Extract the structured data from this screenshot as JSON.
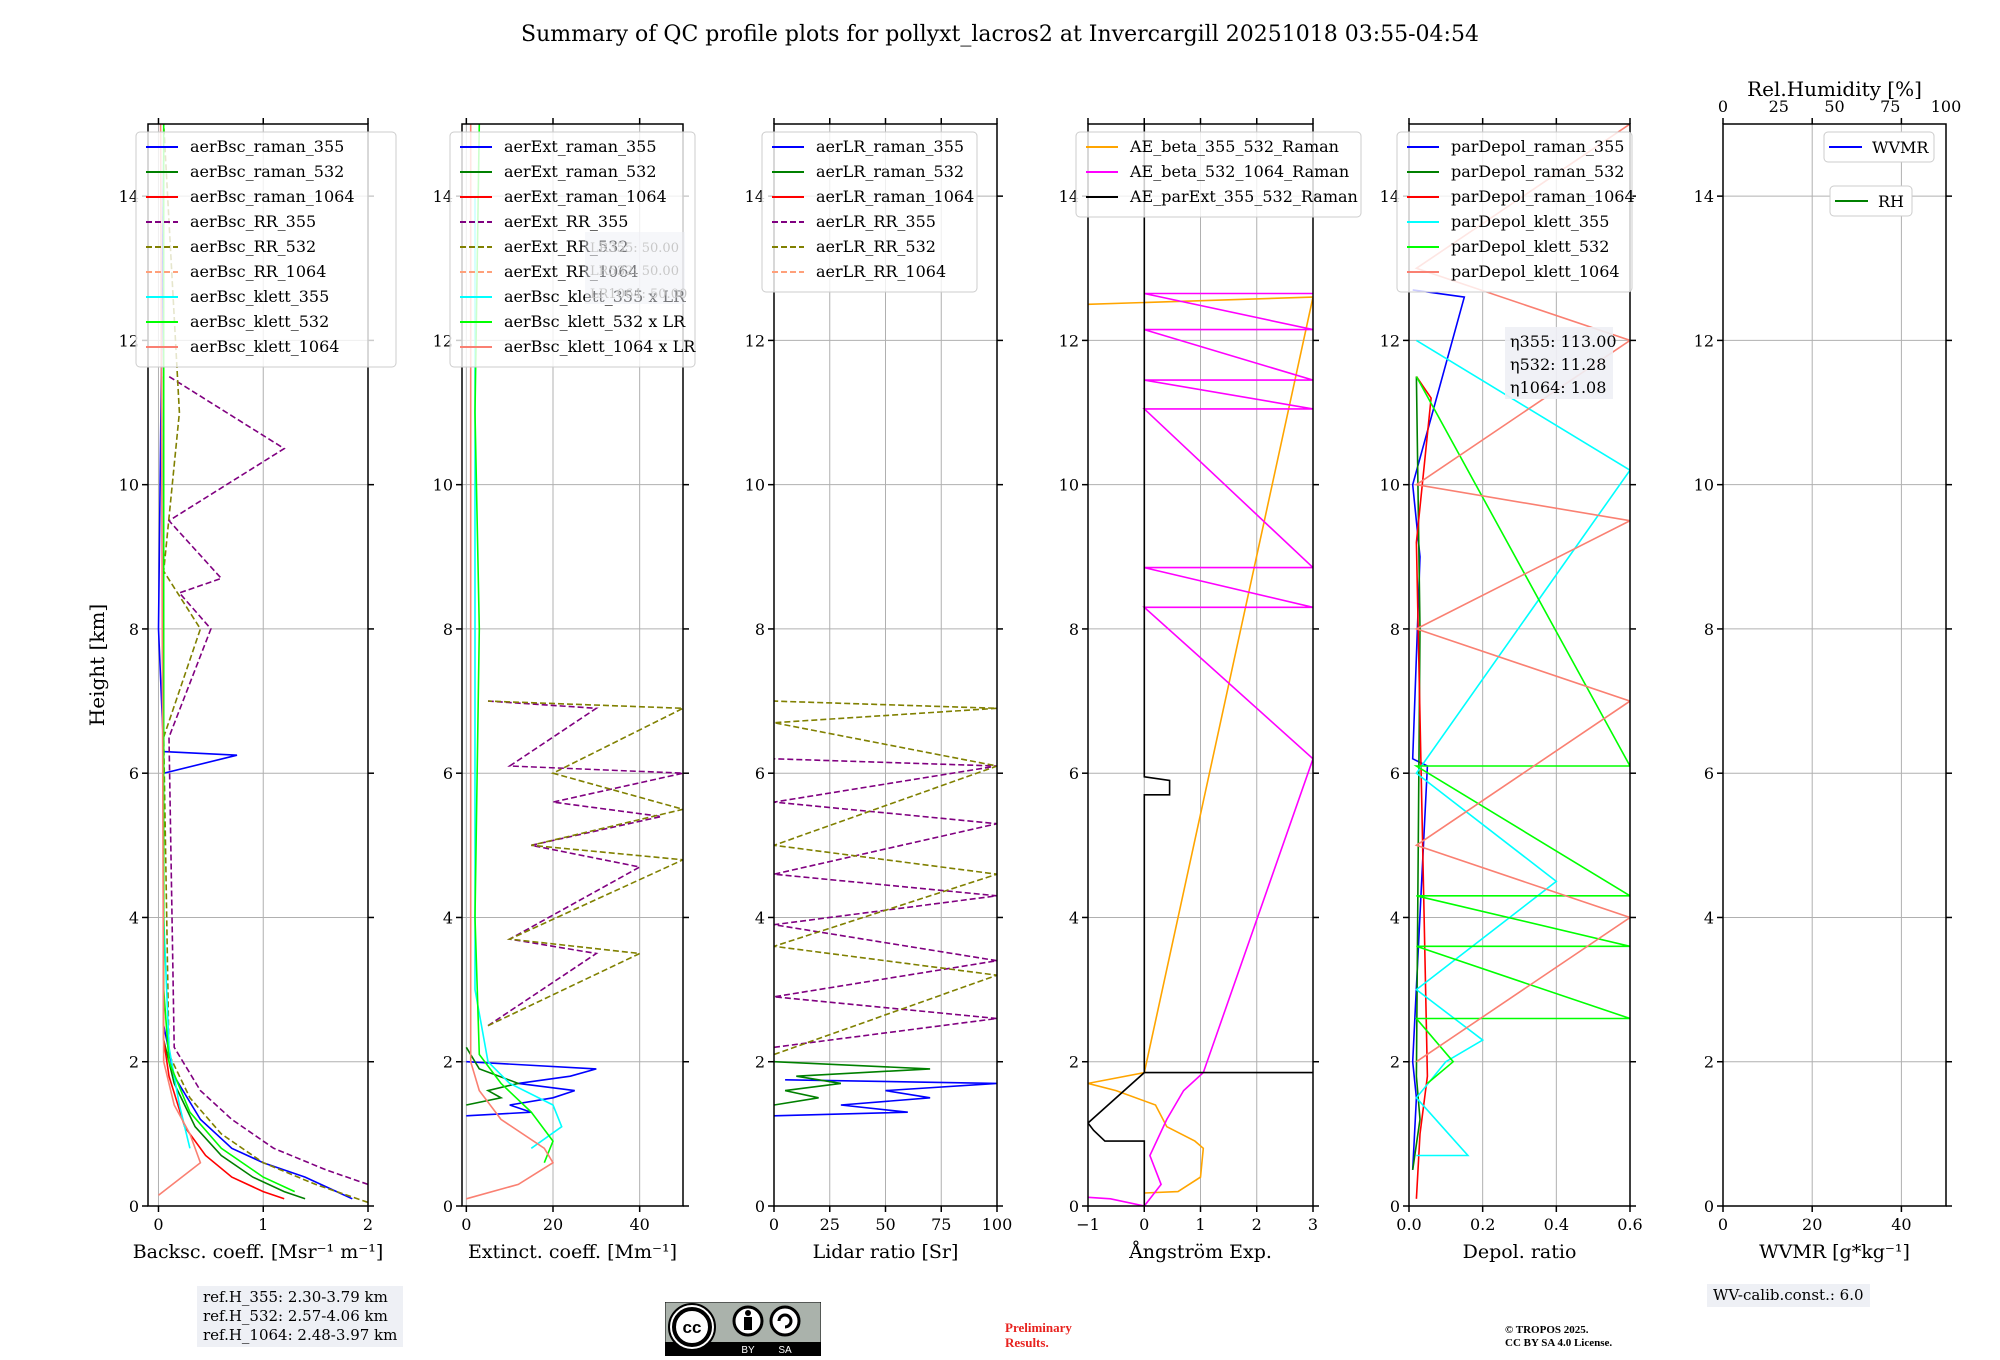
{
  "title": "Summary of QC profile plots for pollyxt_lacros2 at Invercargill 20251018 03:55-04:54",
  "chart_data": [
    {
      "type": "line",
      "id": "backscatter",
      "xlabel": "Backsc. coeff. [Msr⁻¹ m⁻¹]",
      "ylabel": "Height [km]",
      "xlim": [
        -0.1,
        2.0
      ],
      "ylim": [
        0,
        15
      ],
      "xticks": [
        0,
        1,
        2
      ],
      "yticks": [
        0,
        2,
        4,
        6,
        8,
        10,
        12,
        14
      ],
      "grid": true,
      "legend_position": "top-left",
      "series": [
        {
          "name": "aerBsc_raman_355",
          "color": "#0000ff",
          "dash": false,
          "x": [
            1.85,
            1.7,
            1.4,
            1.0,
            0.7,
            0.4,
            0.15,
            0.05,
            0.05,
            0.05,
            0.75,
            0.05,
            0.0,
            0.05
          ],
          "y": [
            0.1,
            0.2,
            0.4,
            0.6,
            0.8,
            1.2,
            1.8,
            2.5,
            4.0,
            6.0,
            6.25,
            6.3,
            8.0,
            14.5
          ]
        },
        {
          "name": "aerBsc_raman_532",
          "color": "#008000",
          "dash": false,
          "x": [
            1.4,
            1.2,
            0.9,
            0.6,
            0.35,
            0.15,
            0.05,
            0.05,
            0.05
          ],
          "y": [
            0.1,
            0.2,
            0.4,
            0.7,
            1.1,
            1.7,
            2.3,
            6.0,
            11.5
          ]
        },
        {
          "name": "aerBsc_raman_1064",
          "color": "#ff0000",
          "dash": false,
          "x": [
            1.2,
            1.0,
            0.7,
            0.45,
            0.25,
            0.1,
            0.05,
            0.05
          ],
          "y": [
            0.1,
            0.2,
            0.4,
            0.7,
            1.1,
            1.8,
            2.3,
            9.0
          ]
        },
        {
          "name": "aerBsc_RR_355",
          "color": "#800080",
          "dash": true,
          "x": [
            2.0,
            1.6,
            1.1,
            0.7,
            0.4,
            0.15,
            0.1,
            0.5,
            0.2,
            0.6,
            0.1,
            1.2,
            0.1
          ],
          "y": [
            0.3,
            0.5,
            0.8,
            1.2,
            1.6,
            2.2,
            6.5,
            8.0,
            8.5,
            8.7,
            9.5,
            10.5,
            11.5
          ]
        },
        {
          "name": "aerBsc_RR_532",
          "color": "#808000",
          "dash": true,
          "x": [
            2.0,
            1.5,
            1.0,
            0.6,
            0.3,
            0.1,
            0.05,
            0.4,
            0.05,
            0.2,
            0.05
          ],
          "y": [
            0.05,
            0.3,
            0.6,
            1.0,
            1.5,
            2.1,
            6.5,
            8.0,
            8.8,
            11.0,
            15.0
          ]
        },
        {
          "name": "aerBsc_RR_1064",
          "color": "#ffa07a",
          "dash": true,
          "x": [
            0.05,
            0.05
          ],
          "y": [
            2.0,
            15.0
          ]
        },
        {
          "name": "aerBsc_klett_355",
          "color": "#00ffff",
          "dash": false,
          "x": [
            0.3,
            0.2,
            0.1,
            0.05,
            0.05
          ],
          "y": [
            0.8,
            1.4,
            2.2,
            4.0,
            11.0
          ]
        },
        {
          "name": "aerBsc_klett_532",
          "color": "#00ff00",
          "dash": false,
          "x": [
            1.3,
            1.0,
            0.6,
            0.3,
            0.1,
            0.05,
            0.05
          ],
          "y": [
            0.2,
            0.4,
            0.8,
            1.3,
            2.0,
            3.0,
            15.0
          ]
        },
        {
          "name": "aerBsc_klett_1064",
          "color": "#fa8072",
          "dash": false,
          "x": [
            0.0,
            0.4,
            0.3,
            0.15,
            0.05,
            0.02
          ],
          "y": [
            0.15,
            0.6,
            1.0,
            1.4,
            2.0,
            15.0
          ]
        }
      ],
      "footnote": [
        "ref.H_355: 2.30-3.79 km",
        "ref.H_532: 2.57-4.06 km",
        "ref.H_1064: 2.48-3.97 km"
      ]
    },
    {
      "type": "line",
      "id": "extinction",
      "xlabel": "Extinct. coeff. [Mm⁻¹]",
      "xlim": [
        -1,
        50
      ],
      "ylim": [
        0,
        15
      ],
      "xticks": [
        0,
        20,
        40
      ],
      "yticks": [
        0,
        2,
        4,
        6,
        8,
        10,
        12,
        14
      ],
      "grid": true,
      "legend_position": "top-left",
      "annotation": [
        "LR355: 50.00",
        "LR532: 50.00",
        "LR1064: 50.00"
      ],
      "series": [
        {
          "name": "aerExt_raman_355",
          "color": "#0000ff",
          "dash": false,
          "x": [
            0,
            15,
            10,
            20,
            25,
            12,
            24,
            30,
            0
          ],
          "y": [
            1.25,
            1.3,
            1.4,
            1.5,
            1.6,
            1.7,
            1.8,
            1.9,
            2.0
          ]
        },
        {
          "name": "aerExt_raman_532",
          "color": "#008000",
          "dash": false,
          "x": [
            0,
            8,
            5,
            12,
            3,
            0
          ],
          "y": [
            1.4,
            1.5,
            1.6,
            1.7,
            1.9,
            2.2
          ]
        },
        {
          "name": "aerExt_raman_1064",
          "color": "#ff0000",
          "dash": false,
          "x": [],
          "y": []
        },
        {
          "name": "aerExt_RR_355",
          "color": "#800080",
          "dash": true,
          "x": [
            5,
            30,
            10,
            40,
            15,
            45,
            20,
            50,
            10,
            30,
            5
          ],
          "y": [
            2.5,
            3.5,
            3.7,
            4.7,
            5.0,
            5.4,
            5.6,
            6.0,
            6.1,
            6.9,
            7.0
          ]
        },
        {
          "name": "aerExt_RR_532",
          "color": "#808000",
          "dash": true,
          "x": [
            5,
            40,
            10,
            50,
            15,
            50,
            20,
            50,
            5
          ],
          "y": [
            2.5,
            3.5,
            3.7,
            4.8,
            5.0,
            5.5,
            6.0,
            6.9,
            7.0
          ]
        },
        {
          "name": "aerExt_RR_1064",
          "color": "#ffa07a",
          "dash": true,
          "x": [],
          "y": []
        },
        {
          "name": "aerBsc_klett_355 x LR",
          "color": "#00ffff",
          "dash": false,
          "x": [
            15,
            22,
            20,
            10,
            5,
            2,
            2
          ],
          "y": [
            0.8,
            1.1,
            1.4,
            1.7,
            2.0,
            3.0,
            14.0
          ]
        },
        {
          "name": "aerBsc_klett_532 x LR",
          "color": "#00ff00",
          "dash": false,
          "x": [
            18,
            20,
            15,
            8,
            3,
            2,
            3,
            2,
            3
          ],
          "y": [
            0.6,
            0.9,
            1.3,
            1.7,
            2.1,
            4.0,
            8.0,
            11.0,
            15.0
          ]
        },
        {
          "name": "aerBsc_klett_1064 x LR",
          "color": "#fa8072",
          "dash": false,
          "x": [
            0,
            12,
            20,
            18,
            8,
            3,
            1,
            1
          ],
          "y": [
            0.1,
            0.3,
            0.6,
            0.8,
            1.2,
            1.6,
            2.0,
            15.0
          ]
        }
      ]
    },
    {
      "type": "line",
      "id": "lidar-ratio",
      "xlabel": "Lidar ratio [Sr]",
      "xlim": [
        0,
        100
      ],
      "ylim": [
        0,
        15
      ],
      "xticks": [
        0,
        25,
        50,
        75,
        100
      ],
      "yticks": [
        0,
        2,
        4,
        6,
        8,
        10,
        12,
        14
      ],
      "grid": true,
      "legend_position": "top-left",
      "series": [
        {
          "name": "aerLR_raman_355",
          "color": "#0000ff",
          "dash": false,
          "x": [
            0,
            60,
            30,
            70,
            50,
            100,
            5
          ],
          "y": [
            1.25,
            1.3,
            1.4,
            1.5,
            1.6,
            1.7,
            1.75
          ]
        },
        {
          "name": "aerLR_raman_532",
          "color": "#008000",
          "dash": false,
          "x": [
            0,
            20,
            5,
            30,
            10,
            70,
            0
          ],
          "y": [
            1.4,
            1.5,
            1.6,
            1.7,
            1.8,
            1.9,
            2.0
          ]
        },
        {
          "name": "aerLR_raman_1064",
          "color": "#ff0000",
          "dash": false,
          "x": [],
          "y": []
        },
        {
          "name": "aerLR_RR_355",
          "color": "#800080",
          "dash": true,
          "x": [
            0,
            100,
            0,
            100,
            0,
            100,
            0,
            100,
            0,
            100,
            0
          ],
          "y": [
            2.2,
            2.6,
            2.9,
            3.4,
            3.9,
            4.3,
            4.6,
            5.3,
            5.6,
            6.1,
            6.2
          ]
        },
        {
          "name": "aerLR_RR_532",
          "color": "#808000",
          "dash": true,
          "x": [
            0,
            100,
            0,
            100,
            0,
            100,
            0,
            100,
            0
          ],
          "y": [
            2.1,
            3.2,
            3.6,
            4.6,
            5.0,
            6.1,
            6.7,
            6.9,
            7.0
          ]
        },
        {
          "name": "aerLR_RR_1064",
          "color": "#ffa07a",
          "dash": true,
          "x": [],
          "y": []
        }
      ]
    },
    {
      "type": "line",
      "id": "angstrom",
      "xlabel": "Ångström Exp.",
      "xlim": [
        -1,
        3
      ],
      "ylim": [
        0,
        15
      ],
      "xticks": [
        -1,
        0,
        1,
        2,
        3
      ],
      "yticks": [
        0,
        2,
        4,
        6,
        8,
        10,
        12,
        14
      ],
      "grid": true,
      "legend_position": "top-left",
      "series": [
        {
          "name": "AE_beta_355_532_Raman",
          "color": "#ffa500",
          "dash": false,
          "x": [
            0,
            0.6,
            1.0,
            1.05,
            0.9,
            0.4,
            0.2,
            -0.5,
            -1.0,
            0,
            3,
            -1
          ],
          "y": [
            0.18,
            0.2,
            0.4,
            0.8,
            0.9,
            1.1,
            1.4,
            1.6,
            1.7,
            1.85,
            12.6,
            12.5
          ]
        },
        {
          "name": "AE_beta_532_1064_Raman",
          "color": "#ff00ff",
          "dash": false,
          "x": [
            -1,
            -0.6,
            0,
            0.3,
            0.1,
            0.4,
            0.7,
            1.05,
            3,
            0,
            3,
            0,
            3,
            0,
            3,
            0,
            3,
            0,
            3,
            0,
            3
          ],
          "y": [
            0.12,
            0.1,
            0.0,
            0.3,
            0.7,
            1.2,
            1.6,
            1.85,
            6.2,
            8.3,
            8.3,
            8.85,
            8.85,
            11.05,
            11.05,
            11.45,
            11.45,
            12.15,
            12.15,
            12.65,
            12.65
          ]
        },
        {
          "name": "AE_parExt_355_532_Raman",
          "color": "#000000",
          "dash": false,
          "x": [
            0,
            0,
            -0.7,
            -0.9,
            -1.0,
            0,
            0,
            3,
            0,
            0,
            0.45,
            0.45,
            0,
            0
          ],
          "y": [
            0,
            0.9,
            0.9,
            1.05,
            1.15,
            1.85,
            1.85,
            1.85,
            1.85,
            5.7,
            5.7,
            5.9,
            5.95,
            15
          ]
        }
      ]
    },
    {
      "type": "line",
      "id": "depolarization",
      "xlabel": "Depol. ratio",
      "xlim": [
        0,
        0.6
      ],
      "ylim": [
        0,
        15
      ],
      "xticks": [
        0.0,
        0.2,
        0.4,
        0.6
      ],
      "yticks": [
        0,
        2,
        4,
        6,
        8,
        10,
        12,
        14
      ],
      "grid": true,
      "legend_position": "top-left",
      "annotation": [
        "η355: 113.00",
        "η532: 11.28",
        "η1064: 1.08"
      ],
      "series": [
        {
          "name": "parDepol_raman_355",
          "color": "#0000ff",
          "dash": false,
          "x": [
            0.01,
            0.02,
            0.01,
            0.05,
            0.01,
            0.03,
            0.01,
            0.15,
            0.01
          ],
          "y": [
            0.5,
            1.5,
            2.0,
            6.1,
            6.2,
            9.0,
            10.0,
            12.6,
            12.7
          ]
        },
        {
          "name": "parDepol_raman_532",
          "color": "#008000",
          "dash": false,
          "x": [
            0.01,
            0.03,
            0.02,
            0.03,
            0.02
          ],
          "y": [
            0.5,
            1.2,
            1.8,
            8.0,
            11.5
          ]
        },
        {
          "name": "parDepol_raman_1064",
          "color": "#ff0000",
          "dash": false,
          "x": [
            0.02,
            0.03,
            0.05,
            0.02,
            0.06,
            0.02
          ],
          "y": [
            0.1,
            1.0,
            1.8,
            9.2,
            11.2,
            11.5
          ]
        },
        {
          "name": "parDepol_klett_355",
          "color": "#00ffff",
          "dash": false,
          "x": [
            0.02,
            0.16,
            0.02,
            0.1,
            0.2,
            0.02,
            0.4,
            0.02,
            0.6,
            0.02
          ],
          "y": [
            0.7,
            0.7,
            1.5,
            2.0,
            2.3,
            3.0,
            4.5,
            6.0,
            10.2,
            12.0
          ]
        },
        {
          "name": "parDepol_klett_532",
          "color": "#00ff00",
          "dash": false,
          "x": [
            0.05,
            0.12,
            0.02,
            0.6,
            0.02,
            0.6,
            0.02,
            0.6,
            0.02,
            0.6,
            0.02
          ],
          "y": [
            1.7,
            2.0,
            2.6,
            2.6,
            3.6,
            3.6,
            4.3,
            4.3,
            6.1,
            6.1,
            11.5
          ]
        },
        {
          "name": "parDepol_klett_1064",
          "color": "#fa8072",
          "dash": false,
          "x": [
            0.02,
            0.6,
            0.02,
            0.6,
            0.02,
            0.6,
            0.02,
            0.6,
            0.02,
            0.6
          ],
          "y": [
            2.0,
            4.0,
            5.0,
            7.0,
            8.0,
            9.5,
            10.0,
            12.0,
            13.0,
            15.0
          ]
        }
      ]
    },
    {
      "type": "line",
      "id": "water-vapor",
      "xlabel": "WVMR [g*kg⁻¹]",
      "xlim": [
        0,
        50
      ],
      "ylim": [
        0,
        15
      ],
      "xticks": [
        0,
        20,
        40
      ],
      "yticks": [
        0,
        2,
        4,
        6,
        8,
        10,
        12,
        14
      ],
      "top_xlabel": "Rel.Humidity [%]",
      "top_xlim": [
        0,
        100
      ],
      "top_xticks": [
        0,
        25,
        50,
        75,
        100
      ],
      "grid": true,
      "legend_position": "top-right",
      "series": [
        {
          "name": "WVMR",
          "color": "#0000ff",
          "dash": false,
          "x": [],
          "y": []
        },
        {
          "name": "RH",
          "color": "#008000",
          "dash": false,
          "x": [],
          "y": []
        }
      ],
      "footnote": [
        "WV-calib.const.: 6.0"
      ]
    }
  ],
  "footer": {
    "license_badge": [
      "cc",
      "BY",
      "SA"
    ],
    "preliminary": [
      "Preliminary",
      "Results."
    ],
    "copyright": [
      "© TROPOS 2025.",
      "CC BY SA 4.0 License."
    ]
  }
}
